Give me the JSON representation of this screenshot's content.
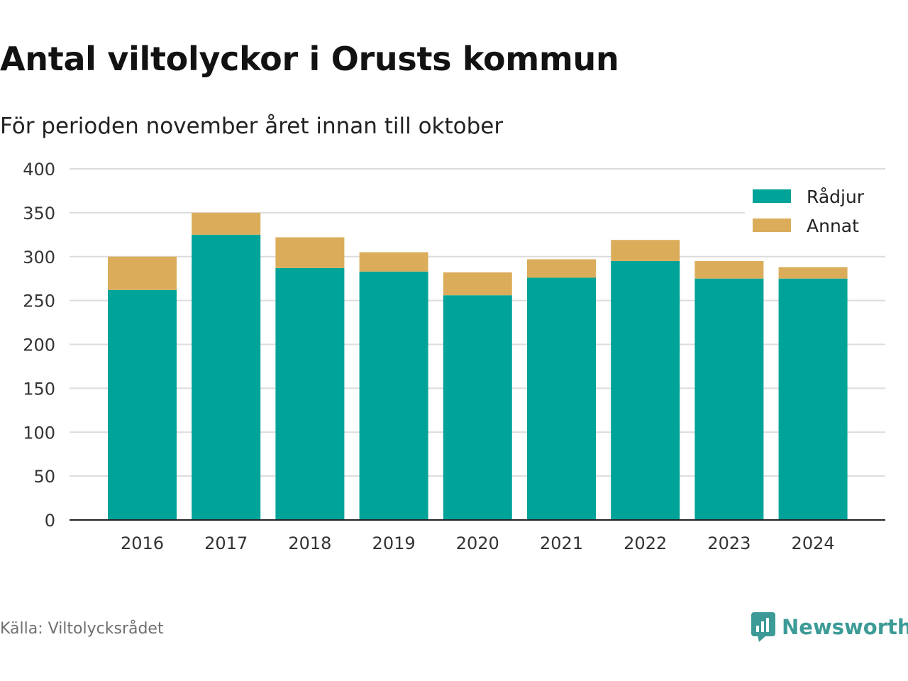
{
  "title": "Antal viltolyckor i Orusts kommun",
  "subtitle": "För perioden november året innan till oktober",
  "source": "Källa: Viltolycksrådet",
  "brand": {
    "name": "Newsworthy",
    "icon": "newsworthy-logo-icon",
    "color": "#3d9b97"
  },
  "chart_data": {
    "type": "bar",
    "stacked": true,
    "categories": [
      "2016",
      "2017",
      "2018",
      "2019",
      "2020",
      "2021",
      "2022",
      "2023",
      "2024"
    ],
    "series": [
      {
        "name": "Rådjur",
        "color": "#00a398",
        "values": [
          262,
          325,
          287,
          283,
          256,
          276,
          295,
          275,
          275
        ]
      },
      {
        "name": "Annat",
        "color": "#dbad5b",
        "values": [
          38,
          25,
          35,
          22,
          26,
          21,
          24,
          20,
          13
        ]
      }
    ],
    "ylim": [
      0,
      400
    ],
    "yticks": [
      0,
      50,
      100,
      150,
      200,
      250,
      300,
      350,
      400
    ],
    "grid": true,
    "legend_position": "top-right"
  }
}
